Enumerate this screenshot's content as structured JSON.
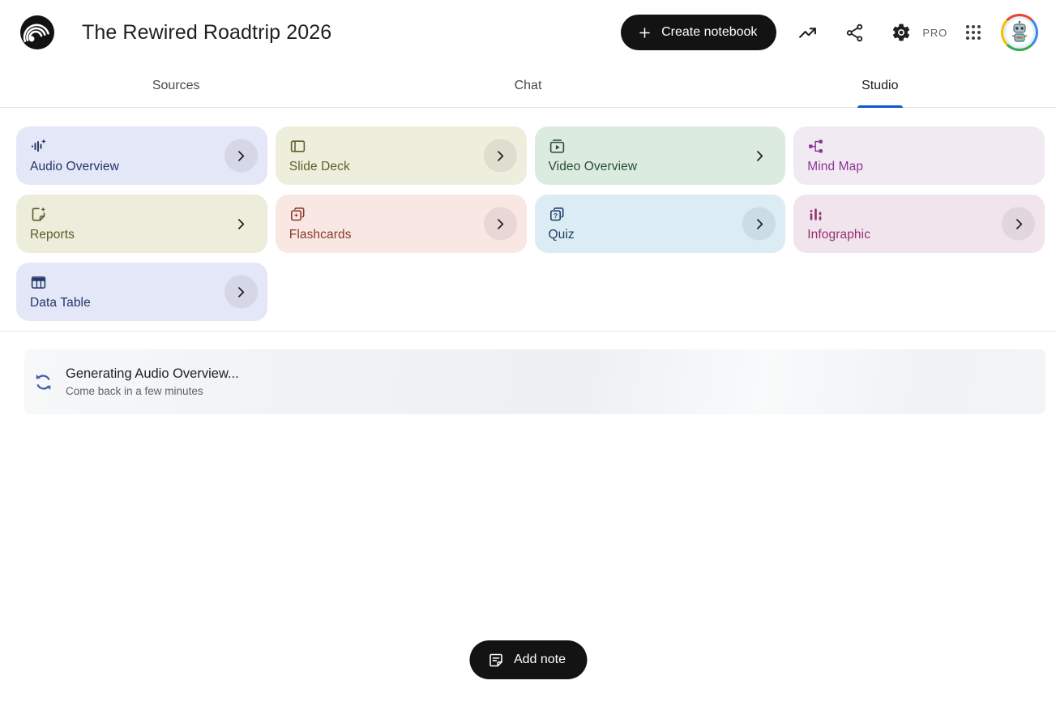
{
  "header": {
    "title": "The Rewired Roadtrip 2026",
    "create_button": "Create notebook",
    "pro_badge": "PRO"
  },
  "tabs": [
    {
      "label": "Sources",
      "active": false
    },
    {
      "label": "Chat",
      "active": false
    },
    {
      "label": "Studio",
      "active": true
    }
  ],
  "studio_cards": [
    {
      "label": "Audio Overview",
      "icon": "audio-overview",
      "bg": "#e4e7f7",
      "fg": "#223567",
      "chevron": "circle"
    },
    {
      "label": "Slide Deck",
      "icon": "slide-deck",
      "bg": "#eeeedd",
      "fg": "#635d2a",
      "chevron": "circle"
    },
    {
      "label": "Video Overview",
      "icon": "video-overview",
      "bg": "#dcebdf",
      "fg": "#274e33",
      "chevron": "plain"
    },
    {
      "label": "Mind Map",
      "icon": "mind-map",
      "bg": "#f2eaf3",
      "fg": "#8a3894",
      "chevron": "none"
    },
    {
      "label": "Reports",
      "icon": "reports",
      "bg": "#ecedda",
      "fg": "#5d592a",
      "chevron": "plain"
    },
    {
      "label": "Flashcards",
      "icon": "flashcards",
      "bg": "#f9e7e4",
      "fg": "#8a392b",
      "chevron": "circle"
    },
    {
      "label": "Quiz",
      "icon": "quiz",
      "bg": "#dbecf4",
      "fg": "#1d3d66",
      "chevron": "circle"
    },
    {
      "label": "Infographic",
      "icon": "infographic",
      "bg": "#f1e4ed",
      "fg": "#943071",
      "chevron": "circle"
    },
    {
      "label": "Data Table",
      "icon": "data-table",
      "bg": "#e4e7f7",
      "fg": "#223567",
      "chevron": "circle"
    }
  ],
  "loading": {
    "title": "Generating Audio Overview...",
    "subtitle": "Come back in a few minutes"
  },
  "footer": {
    "add_note": "Add note"
  },
  "colors": {
    "accent_blue": "#0b57d0",
    "loading_icon_blue": "#4164ad",
    "button_black": "#131314"
  }
}
